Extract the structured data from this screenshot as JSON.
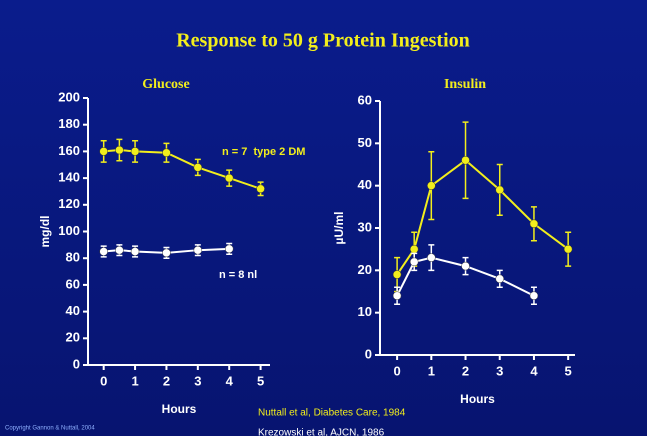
{
  "title": "Response to 50 g Protein Ingestion",
  "copyright": "Copyright Gannon & Nuttall, 2004",
  "references": [
    "Nuttall et al, Diabetes Care, 1984",
    "Krezowski et al, AJCN, 1986"
  ],
  "chart_data": [
    {
      "type": "line",
      "title": "Glucose",
      "xlabel": "Hours",
      "ylabel": "mg/dl",
      "x": [
        0,
        0.5,
        1,
        2,
        3,
        4,
        5
      ],
      "series": [
        {
          "name": "n = 7  type 2 DM",
          "color": "#f2ee1c",
          "values": [
            160,
            161,
            160,
            159,
            148,
            140,
            132
          ],
          "errors": [
            8,
            8,
            8,
            7,
            6,
            6,
            5
          ]
        },
        {
          "name": "n = 8 nl",
          "color": "#ffffff",
          "values": [
            85,
            86,
            85,
            84,
            86,
            87,
            null
          ],
          "errors": [
            4,
            4,
            4,
            4,
            4,
            4,
            null
          ]
        }
      ],
      "xlim": [
        -0.5,
        5.3
      ],
      "xticks": [
        0,
        1,
        2,
        3,
        4,
        5
      ],
      "ylim": [
        0,
        200
      ],
      "yticks": [
        0,
        20,
        40,
        60,
        80,
        100,
        120,
        140,
        160,
        180,
        200
      ]
    },
    {
      "type": "line",
      "title": "Insulin",
      "xlabel": "Hours",
      "ylabel": "µU/ml",
      "x": [
        0,
        0.5,
        1,
        2,
        3,
        4,
        5
      ],
      "series": [
        {
          "color": "#f2ee1c",
          "values": [
            19,
            25,
            40,
            46,
            39,
            31,
            25
          ],
          "errors": [
            4,
            4,
            8,
            9,
            6,
            4,
            4
          ]
        },
        {
          "color": "#ffffff",
          "values": [
            14,
            22,
            23,
            21,
            18,
            14,
            null
          ],
          "errors": [
            2,
            2,
            3,
            2,
            2,
            2,
            null
          ]
        }
      ],
      "xlim": [
        -0.5,
        5.2
      ],
      "xticks": [
        0,
        1,
        2,
        3,
        4,
        5
      ],
      "ylim": [
        0,
        60
      ],
      "yticks": [
        0,
        10,
        20,
        30,
        40,
        50,
        60
      ]
    }
  ]
}
